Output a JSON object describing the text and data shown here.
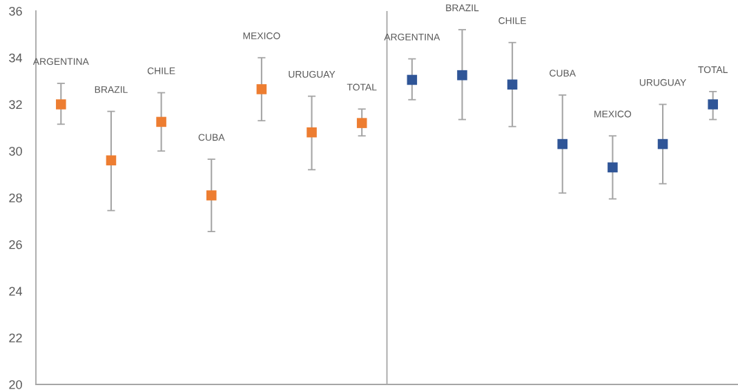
{
  "chart_data": {
    "type": "scatter",
    "categories": [
      "ARGENTINA",
      "BRAZIL",
      "CHILE",
      "CUBA",
      "MEXICO",
      "URUGUAY",
      "TOTAL",
      "ARGENTINA",
      "BRAZIL",
      "CHILE",
      "CUBA",
      "MEXICO",
      "URUGUAY",
      "TOTAL"
    ],
    "marker": "square",
    "ylim": [
      20,
      36
    ],
    "yticks": [
      20,
      22,
      24,
      26,
      28,
      30,
      32,
      34,
      36
    ],
    "tick_labels": "y",
    "series": [
      {
        "color": "#ed7d31",
        "values": [
          32.0,
          29.6,
          31.25,
          28.1,
          32.65,
          30.8,
          31.2,
          null,
          null,
          null,
          null,
          null,
          null,
          null
        ],
        "errors": [
          [
            31.15,
            32.9
          ],
          [
            27.45,
            31.7
          ],
          [
            30.0,
            32.5
          ],
          [
            26.55,
            29.65
          ],
          [
            31.3,
            34.0
          ],
          [
            29.2,
            32.35
          ],
          [
            30.65,
            31.8
          ],
          null,
          null,
          null,
          null,
          null,
          null,
          null
        ]
      },
      {
        "color": "#2f5597",
        "values": [
          null,
          null,
          null,
          null,
          null,
          null,
          null,
          33.05,
          33.25,
          32.85,
          30.3,
          29.3,
          30.3,
          32.0
        ],
        "errors": [
          null,
          null,
          null,
          null,
          null,
          null,
          null,
          [
            32.2,
            33.95
          ],
          [
            31.35,
            35.2
          ],
          [
            31.05,
            34.65
          ],
          [
            28.2,
            32.4
          ],
          [
            27.95,
            30.65
          ],
          [
            28.6,
            32.0
          ],
          [
            31.35,
            32.55
          ]
        ]
      }
    ]
  }
}
